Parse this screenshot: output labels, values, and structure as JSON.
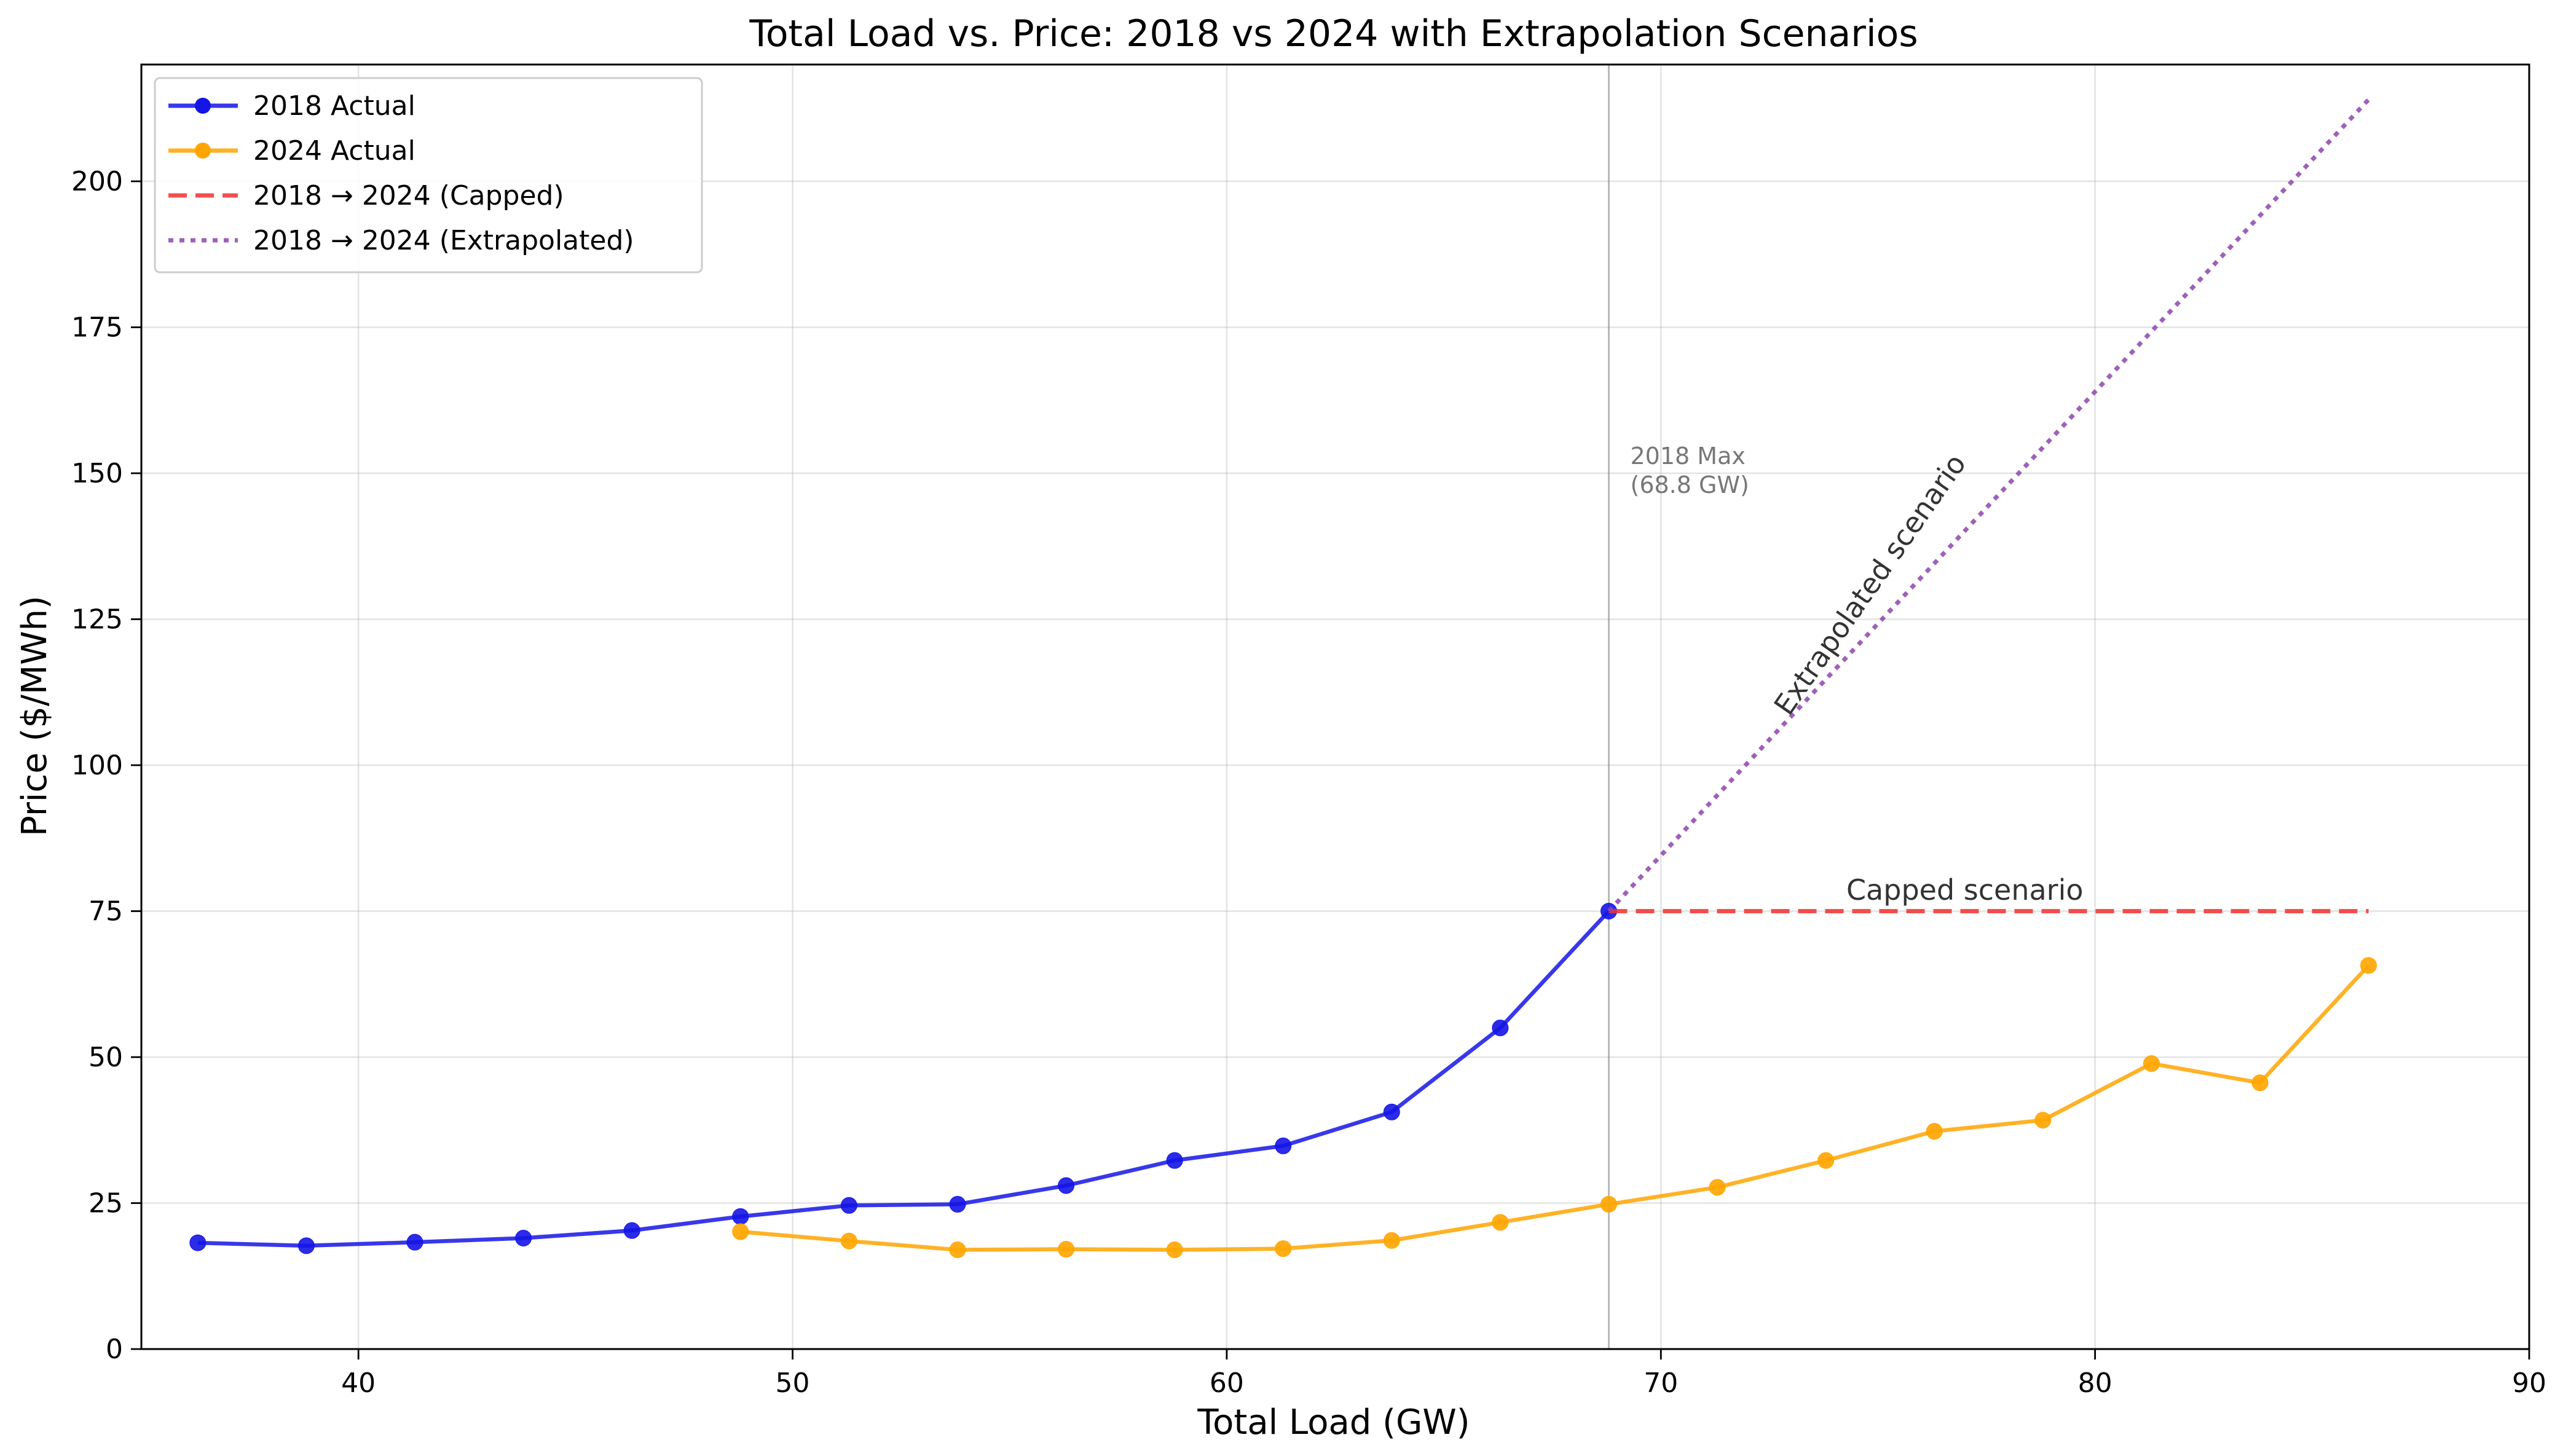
{
  "chart_data": {
    "type": "line",
    "title": "Total Load vs. Price: 2018 vs 2024 with Extrapolation Scenarios",
    "xlabel": "Total Load (GW)",
    "ylabel": "Price ($/MWh)",
    "xlim": [
      35,
      90
    ],
    "ylim": [
      0,
      220
    ],
    "xticks": [
      40,
      50,
      60,
      70,
      80,
      90
    ],
    "yticks": [
      0,
      25,
      50,
      75,
      100,
      125,
      150,
      175,
      200
    ],
    "grid": true,
    "legend_position": "top-left",
    "series": [
      {
        "name": "2018 Actual",
        "color": "#1515e6",
        "style": "solid",
        "marker": "circle",
        "x": [
          36.3,
          38.8,
          41.3,
          43.8,
          46.3,
          48.8,
          51.3,
          53.8,
          56.3,
          58.8,
          61.3,
          63.8,
          66.3,
          68.8
        ],
        "y": [
          18.2,
          17.7,
          18.3,
          19.0,
          20.3,
          22.7,
          24.6,
          24.8,
          28.0,
          32.3,
          34.8,
          40.6,
          55.0,
          75.0
        ]
      },
      {
        "name": "2024 Actual",
        "color": "#ffa500",
        "style": "solid",
        "marker": "circle",
        "x": [
          48.8,
          51.3,
          53.8,
          56.3,
          58.8,
          61.3,
          63.8,
          66.3,
          68.8,
          71.3,
          73.8,
          76.3,
          78.8,
          81.3,
          83.8,
          86.3
        ],
        "y": [
          20.1,
          18.5,
          17.0,
          17.1,
          17.0,
          17.2,
          18.6,
          21.7,
          24.8,
          27.7,
          32.3,
          37.3,
          39.2,
          48.9,
          45.6,
          65.7
        ]
      },
      {
        "name": "2018 → 2024 (Capped)",
        "color": "#f23030",
        "style": "dashed",
        "marker": "none",
        "x": [
          68.8,
          86.3
        ],
        "y": [
          75.0,
          75.0
        ]
      },
      {
        "name": "2018 → 2024 (Extrapolated)",
        "color": "#8e44ad",
        "style": "dotted",
        "marker": "none",
        "x": [
          68.8,
          86.3
        ],
        "y": [
          75.0,
          214.0
        ]
      }
    ],
    "vline": {
      "x": 68.8,
      "label_line1": "2018 Max",
      "label_line2": "(68.8 GW)"
    },
    "annotations": [
      {
        "text": "Capped scenario",
        "x": 77.0,
        "y": 77.5
      },
      {
        "text": "Extrapolated scenario",
        "x": 75.0,
        "y": 130.0
      }
    ]
  }
}
